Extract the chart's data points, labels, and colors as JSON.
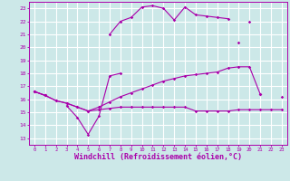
{
  "background_color": "#cce8e8",
  "grid_color": "#ffffff",
  "line_color": "#aa00aa",
  "xlabel": "Windchill (Refroidissement éolien,°C)",
  "xlabel_fontsize": 6.0,
  "xticks": [
    0,
    1,
    2,
    3,
    4,
    5,
    6,
    7,
    8,
    9,
    10,
    11,
    12,
    13,
    14,
    15,
    16,
    17,
    18,
    19,
    20,
    21,
    22,
    23
  ],
  "yticks": [
    13,
    14,
    15,
    16,
    17,
    18,
    19,
    20,
    21,
    22,
    23
  ],
  "xlim": [
    -0.5,
    23.5
  ],
  "ylim": [
    12.5,
    23.5
  ],
  "series": [
    [
      16.6,
      16.3,
      null,
      15.5,
      14.6,
      13.3,
      14.7,
      17.8,
      18.0,
      null,
      null,
      null,
      null,
      null,
      null,
      null,
      null,
      null,
      null,
      20.4,
      null,
      16.4,
      null,
      16.2
    ],
    [
      null,
      null,
      null,
      null,
      null,
      null,
      null,
      21.0,
      22.0,
      22.3,
      23.1,
      23.2,
      23.0,
      22.1,
      23.1,
      22.5,
      22.4,
      22.3,
      22.2,
      null,
      22.0,
      null,
      null,
      null
    ],
    [
      16.6,
      16.3,
      15.9,
      15.7,
      15.4,
      15.1,
      15.2,
      15.3,
      15.4,
      15.4,
      15.4,
      15.4,
      15.4,
      15.4,
      15.4,
      15.1,
      15.1,
      15.1,
      15.1,
      15.2,
      15.2,
      15.2,
      15.2,
      15.2
    ],
    [
      16.6,
      16.3,
      15.9,
      15.7,
      15.4,
      15.1,
      15.4,
      15.8,
      16.2,
      16.5,
      16.8,
      17.1,
      17.4,
      17.6,
      17.8,
      17.9,
      18.0,
      18.1,
      18.4,
      18.5,
      18.5,
      16.4,
      null,
      null
    ]
  ]
}
